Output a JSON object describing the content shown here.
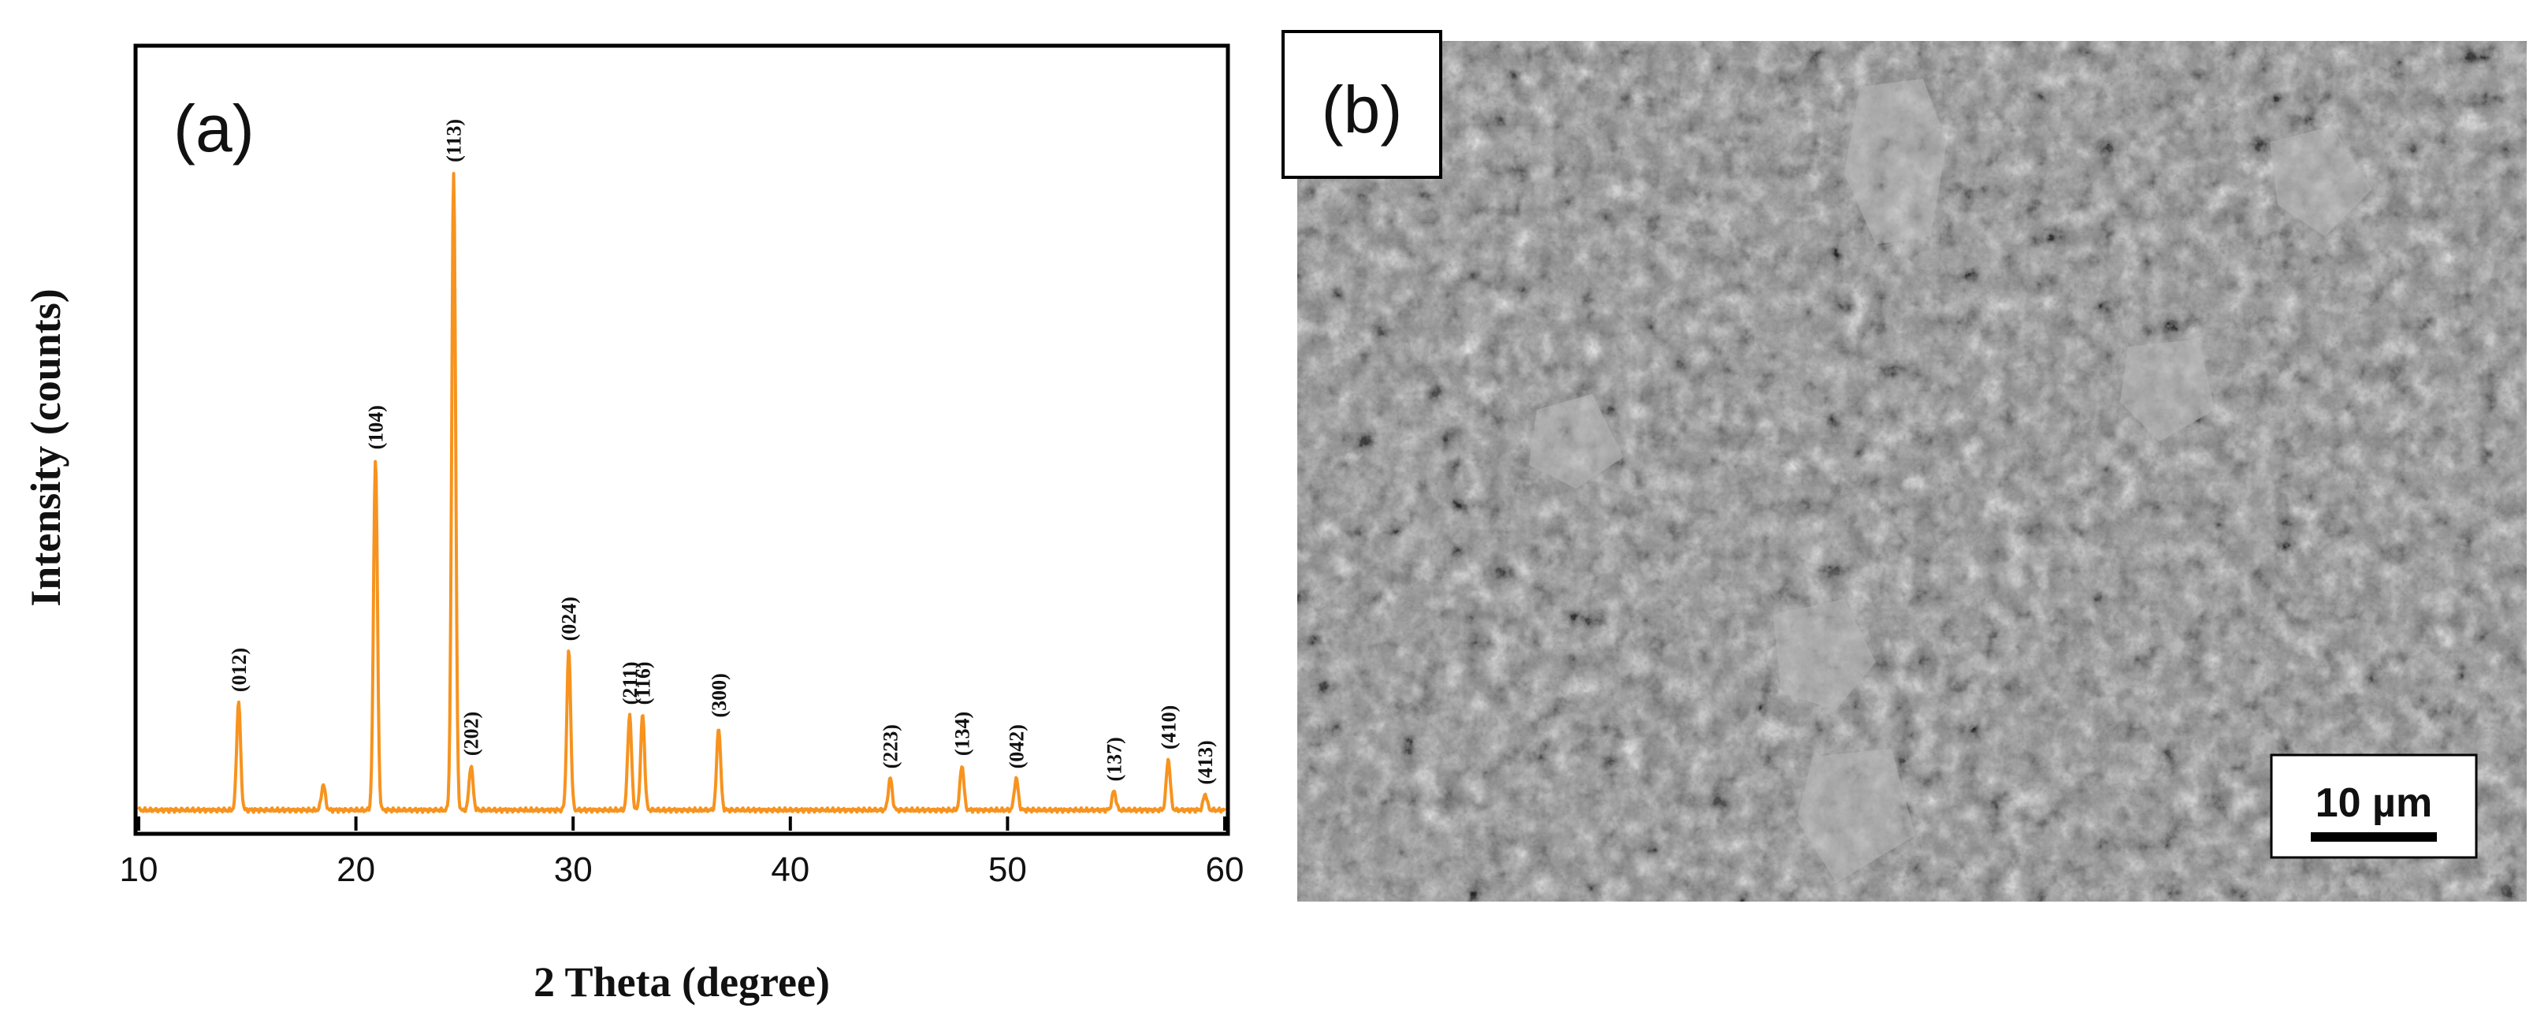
{
  "panel_a": {
    "tag": "(a)"
  },
  "panel_b": {
    "tag": "(b)",
    "scale_bar_label": "10 µm",
    "image_description_color": "#8a8a8a"
  },
  "chart_data": {
    "type": "line",
    "xlabel": "2 Theta (degree)",
    "ylabel": "Intensity (counts)",
    "xlim": [
      10,
      60
    ],
    "ylim": [
      0,
      105
    ],
    "xticks": [
      10,
      20,
      30,
      40,
      50,
      60
    ],
    "line_color": "#f7931e",
    "grid": false,
    "baseline": 1.5,
    "peaks": [
      {
        "x": 14.6,
        "height": 17,
        "label": "(012)"
      },
      {
        "x": 18.5,
        "height": 4,
        "label": ""
      },
      {
        "x": 20.9,
        "height": 55,
        "label": "(104)"
      },
      {
        "x": 24.5,
        "height": 100,
        "label": "(113)"
      },
      {
        "x": 25.3,
        "height": 7,
        "label": "(202)"
      },
      {
        "x": 29.8,
        "height": 25,
        "label": "(024)"
      },
      {
        "x": 32.6,
        "height": 15,
        "label": "(211)"
      },
      {
        "x": 33.2,
        "height": 15,
        "label": "(116)"
      },
      {
        "x": 36.7,
        "height": 13,
        "label": "(300)"
      },
      {
        "x": 44.6,
        "height": 5,
        "label": "(223)"
      },
      {
        "x": 47.9,
        "height": 7,
        "label": "(134)"
      },
      {
        "x": 50.4,
        "height": 5,
        "label": "(042)"
      },
      {
        "x": 54.9,
        "height": 3,
        "label": "(137)"
      },
      {
        "x": 57.4,
        "height": 8,
        "label": "(410)"
      },
      {
        "x": 59.1,
        "height": 2.5,
        "label": "(413)"
      }
    ]
  }
}
